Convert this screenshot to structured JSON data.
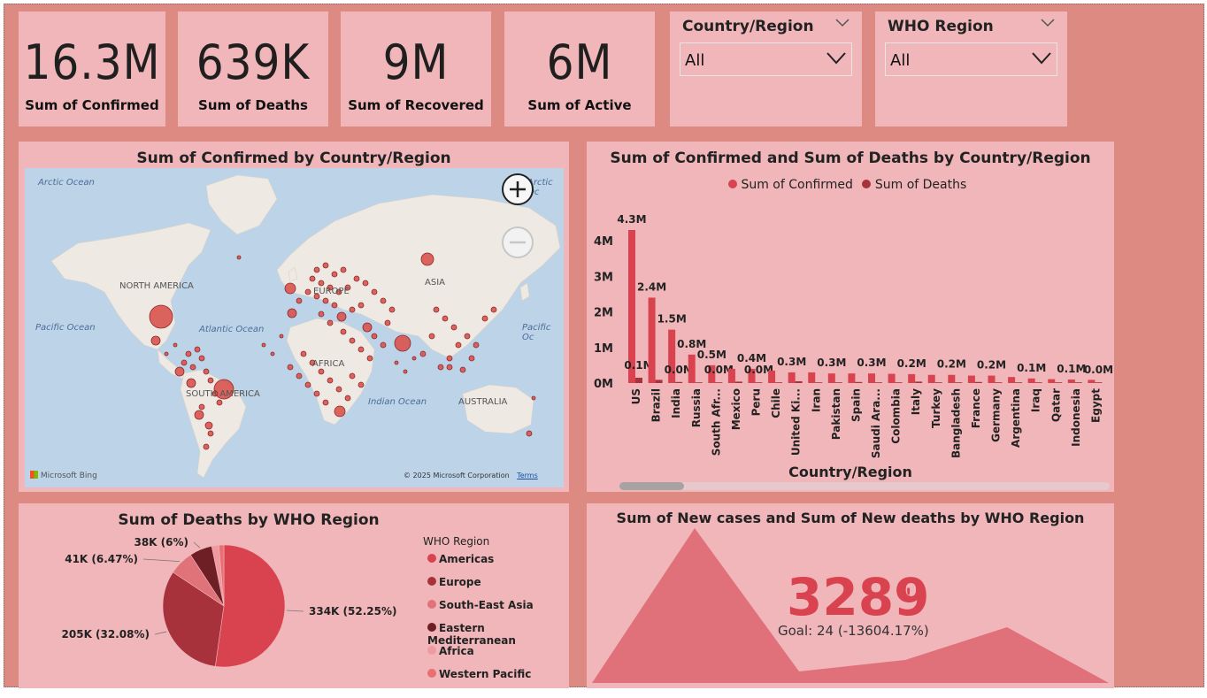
{
  "kpis": [
    {
      "value": "16.3M",
      "label": "Sum of Confirmed"
    },
    {
      "value": "639K",
      "label": "Sum of Deaths"
    },
    {
      "value": "9M",
      "label": "Sum of Recovered"
    },
    {
      "value": "6M",
      "label": "Sum of Active"
    }
  ],
  "slicers": [
    {
      "title": "Country/Region",
      "value": "All"
    },
    {
      "title": "WHO Region",
      "value": "All"
    }
  ],
  "map": {
    "title": "Sum of Confirmed by Country/Region",
    "labels": {
      "north_america": "NORTH AMERICA",
      "south_america": "SOUTH AMERICA",
      "europe": "EUROPE",
      "asia": "ASIA",
      "africa": "AFRICA",
      "australia": "AUSTRALIA"
    },
    "oceans": {
      "arctic_left": "Arctic Ocean",
      "arctic_right": "Arctic Oc",
      "pacific_left": "Pacific Ocean",
      "pacific_right": "Pacific Oc",
      "atlantic": "Atlantic Ocean",
      "indian": "Indian Ocean"
    },
    "attribution": "© 2025 Microsoft Corporation",
    "terms": "Terms",
    "bing": "Microsoft Bing",
    "bubble_color": "#d9534f"
  },
  "bar_chart": {
    "title": "Sum of Confirmed and Sum of Deaths by Country/Region",
    "xlabel": "Country/Region",
    "legend": [
      "Sum of Confirmed",
      "Sum of Deaths"
    ],
    "colors": {
      "confirmed": "#d9434f",
      "deaths": "#a8323c"
    },
    "chart_data": {
      "type": "bar",
      "categories": [
        "US",
        "Brazil",
        "India",
        "Russia",
        "South Afr...",
        "Mexico",
        "Peru",
        "Chile",
        "United Ki...",
        "Iran",
        "Pakistan",
        "Spain",
        "Saudi Ara...",
        "Colombia",
        "Italy",
        "Turkey",
        "Bangladesh",
        "France",
        "Germany",
        "Argentina",
        "Iraq",
        "Qatar",
        "Indonesia",
        "Egypt"
      ],
      "series": [
        {
          "name": "Sum of Confirmed",
          "values": [
            4.3,
            2.4,
            1.5,
            0.8,
            0.5,
            0.4,
            0.4,
            0.35,
            0.3,
            0.3,
            0.27,
            0.27,
            0.27,
            0.26,
            0.25,
            0.23,
            0.23,
            0.21,
            0.21,
            0.17,
            0.13,
            0.11,
            0.1,
            0.09
          ],
          "labels": [
            "4.3M",
            "2.4M",
            "1.5M",
            "0.8M",
            "0.5M",
            "",
            "0.4M",
            "",
            "0.3M",
            "",
            "0.3M",
            "",
            "0.3M",
            "",
            "0.2M",
            "",
            "0.2M",
            "",
            "0.2M",
            "",
            "0.1M",
            "",
            "0.1M",
            ""
          ]
        },
        {
          "name": "Sum of Deaths",
          "values": [
            0.15,
            0.09,
            0.03,
            0.01,
            0.01,
            0.04,
            0.02,
            0.01,
            0.05,
            0.02,
            0.01,
            0.03,
            0.0,
            0.01,
            0.04,
            0.01,
            0.0,
            0.03,
            0.01,
            0.0,
            0.0,
            0.0,
            0.0,
            0.0
          ],
          "labels": [
            "0.1M",
            "",
            "0.0M",
            "",
            "0.0M",
            "",
            "0.0M",
            "",
            "",
            "",
            "",
            "",
            "",
            "",
            "",
            "",
            "",
            "",
            "",
            "",
            "",
            "",
            "",
            "0.0M"
          ]
        }
      ],
      "yticks": [
        "0M",
        "1M",
        "2M",
        "3M",
        "4M"
      ],
      "ylim": [
        0,
        4.3
      ]
    }
  },
  "pie_chart": {
    "title": "Sum of Deaths by WHO Region",
    "legend_title": "WHO Region",
    "chart_data": {
      "type": "pie",
      "labels": [
        "Americas",
        "Europe",
        "South-East Asia",
        "Eastern Mediterranean",
        "Africa",
        "Western Pacific"
      ],
      "values": [
        52.25,
        32.08,
        6.47,
        6.0,
        1.9,
        1.3
      ],
      "colors": [
        "#d9434f",
        "#a8323c",
        "#e0727a",
        "#6e1f26",
        "#ee9aa0",
        "#e96f73"
      ],
      "data_labels": [
        "334K (52.25%)",
        "205K (32.08%)",
        "41K (6.47%)",
        "38K (6%)",
        "",
        ""
      ]
    }
  },
  "kpi_area": {
    "title": "Sum of New cases and Sum of New deaths by WHO Region",
    "value": "3289",
    "alert": "!",
    "goal": "Goal: 24 (-13604.17%)",
    "color": "#d9434f"
  }
}
